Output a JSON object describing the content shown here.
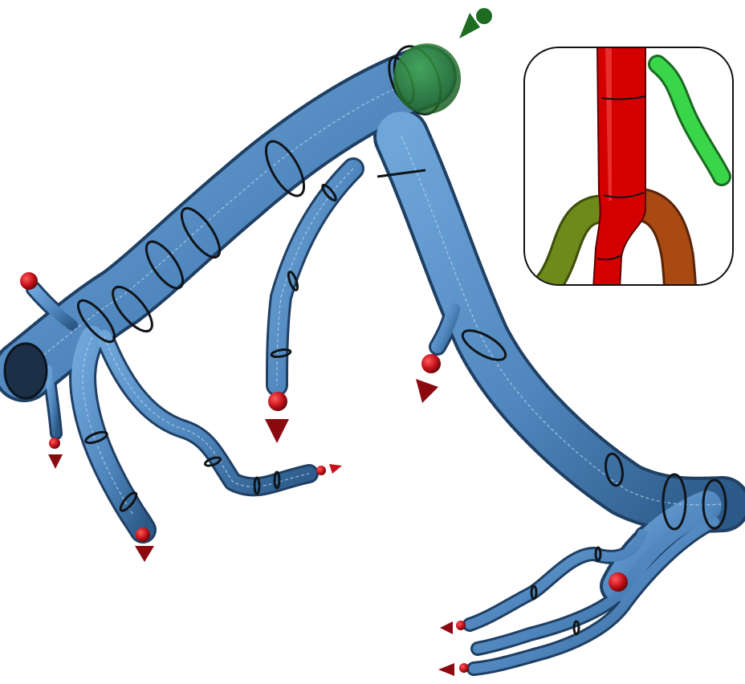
{
  "colors": {
    "vessel": "#4f86bd",
    "vessel_edge": "#1f3f63",
    "centerline": "#b9d4ee",
    "ring": "#101418",
    "outlet_marker": "#c4101a",
    "outlet_marker_dark": "#6e0a0e",
    "inlet_marker": "#1e6b22",
    "inset_main": "#d40000",
    "inset_green": "#39d64a",
    "inset_olive": "#6e8a1a",
    "inset_brown": "#a84a12"
  },
  "icons": {
    "inlet": "green-inlet-arrow-icon",
    "outlet": "red-outlet-arrow-icon"
  }
}
